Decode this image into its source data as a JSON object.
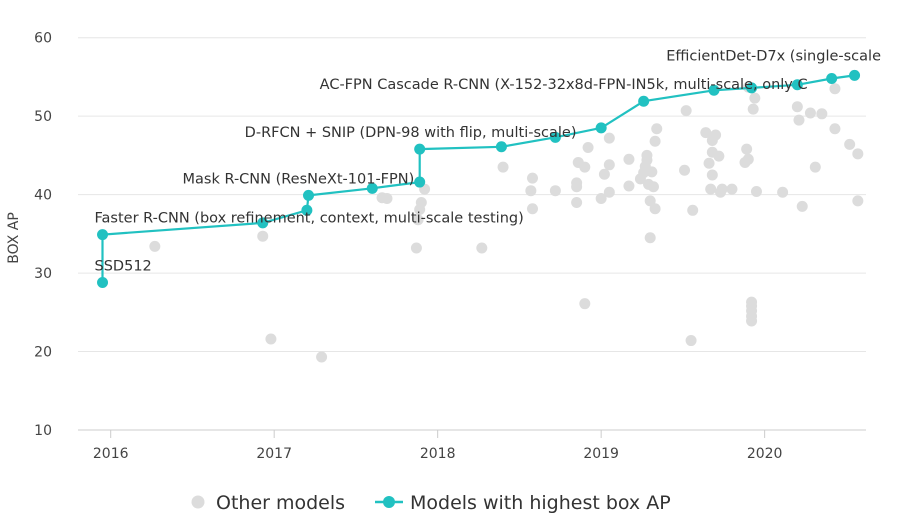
{
  "chart_data": {
    "type": "scatter",
    "ylabel": "BOX AP",
    "xlabel": "",
    "ylim": [
      10,
      62
    ],
    "xlim": [
      2015.8,
      2020.62
    ],
    "yticks": [
      10,
      20,
      30,
      40,
      50,
      60
    ],
    "xticks": [
      {
        "value": 2016.0,
        "label": "2016"
      },
      {
        "value": 2017.0,
        "label": "2017"
      },
      {
        "value": 2018.0,
        "label": "2018"
      },
      {
        "value": 2019.0,
        "label": "2019"
      },
      {
        "value": 2020.0,
        "label": "2020"
      }
    ],
    "grid": "horizontal",
    "legend_position": "bottom",
    "colors": {
      "other": "#dcdcdc",
      "best": "#21c1c1",
      "grid": "#e6e6e6",
      "axis": "#cccccc"
    },
    "series": [
      {
        "name": "Other models",
        "points": [
          [
            2016.27,
            33.4
          ],
          [
            2016.93,
            34.7
          ],
          [
            2016.98,
            21.6
          ],
          [
            2017.29,
            19.3
          ],
          [
            2017.66,
            39.6
          ],
          [
            2017.69,
            39.5
          ],
          [
            2017.87,
            33.2
          ],
          [
            2017.88,
            36.8
          ],
          [
            2017.89,
            38.1
          ],
          [
            2017.9,
            39.0
          ],
          [
            2017.92,
            40.7
          ],
          [
            2018.27,
            33.2
          ],
          [
            2018.4,
            43.5
          ],
          [
            2018.57,
            40.5
          ],
          [
            2018.58,
            42.1
          ],
          [
            2018.58,
            38.2
          ],
          [
            2018.72,
            40.5
          ],
          [
            2018.85,
            39.0
          ],
          [
            2018.85,
            41.0
          ],
          [
            2018.85,
            41.5
          ],
          [
            2018.86,
            44.1
          ],
          [
            2018.9,
            43.5
          ],
          [
            2018.9,
            26.1
          ],
          [
            2018.92,
            46.0
          ],
          [
            2019.0,
            39.5
          ],
          [
            2019.02,
            42.6
          ],
          [
            2019.05,
            40.3
          ],
          [
            2019.05,
            43.8
          ],
          [
            2019.05,
            47.2
          ],
          [
            2019.17,
            41.1
          ],
          [
            2019.17,
            44.5
          ],
          [
            2019.24,
            42.0
          ],
          [
            2019.26,
            42.8
          ],
          [
            2019.27,
            43.6
          ],
          [
            2019.28,
            44.4
          ],
          [
            2019.28,
            45.0
          ],
          [
            2019.29,
            41.3
          ],
          [
            2019.3,
            34.5
          ],
          [
            2019.3,
            39.2
          ],
          [
            2019.31,
            42.9
          ],
          [
            2019.32,
            41.0
          ],
          [
            2019.33,
            38.2
          ],
          [
            2019.33,
            46.8
          ],
          [
            2019.34,
            48.4
          ],
          [
            2019.51,
            43.1
          ],
          [
            2019.52,
            50.7
          ],
          [
            2019.55,
            21.4
          ],
          [
            2019.56,
            38.0
          ],
          [
            2019.64,
            47.9
          ],
          [
            2019.66,
            44.0
          ],
          [
            2019.67,
            40.7
          ],
          [
            2019.68,
            42.5
          ],
          [
            2019.68,
            45.4
          ],
          [
            2019.68,
            46.9
          ],
          [
            2019.7,
            47.6
          ],
          [
            2019.72,
            44.9
          ],
          [
            2019.73,
            40.3
          ],
          [
            2019.74,
            40.7
          ],
          [
            2019.8,
            40.7
          ],
          [
            2019.88,
            44.1
          ],
          [
            2019.89,
            45.8
          ],
          [
            2019.9,
            44.5
          ],
          [
            2019.9,
            53.7
          ],
          [
            2019.92,
            23.9
          ],
          [
            2019.92,
            24.5
          ],
          [
            2019.92,
            25.2
          ],
          [
            2019.92,
            25.8
          ],
          [
            2019.92,
            26.3
          ],
          [
            2019.93,
            50.9
          ],
          [
            2019.94,
            52.3
          ],
          [
            2019.95,
            40.4
          ],
          [
            2020.11,
            40.3
          ],
          [
            2020.2,
            51.2
          ],
          [
            2020.21,
            49.5
          ],
          [
            2020.23,
            38.5
          ],
          [
            2020.28,
            50.4
          ],
          [
            2020.31,
            43.5
          ],
          [
            2020.35,
            50.3
          ],
          [
            2020.43,
            48.4
          ],
          [
            2020.43,
            53.5
          ],
          [
            2020.52,
            46.4
          ],
          [
            2020.57,
            45.2
          ],
          [
            2020.57,
            39.2
          ]
        ]
      },
      {
        "name": "Models with highest box AP",
        "points": [
          [
            2015.95,
            28.8
          ],
          [
            2015.95,
            34.9
          ],
          [
            2016.93,
            36.4
          ],
          [
            2017.2,
            38.0
          ],
          [
            2017.21,
            39.9
          ],
          [
            2017.6,
            40.8
          ],
          [
            2017.89,
            41.6
          ],
          [
            2017.89,
            45.8
          ],
          [
            2018.39,
            46.1
          ],
          [
            2018.72,
            47.3
          ],
          [
            2019.0,
            48.5
          ],
          [
            2019.26,
            51.9
          ],
          [
            2019.69,
            53.3
          ],
          [
            2019.92,
            53.6
          ],
          [
            2020.2,
            54.0
          ],
          [
            2020.41,
            54.8
          ],
          [
            2020.55,
            55.2
          ]
        ]
      }
    ],
    "annotations": [
      {
        "text": "SSD512",
        "x": 2015.95,
        "y": 28.8
      },
      {
        "text": "Faster R-CNN (box refinement, context, multi-scale testing)",
        "x": 2015.95,
        "y": 34.9
      },
      {
        "text": "Mask R-CNN (ResNeXt-101-FPN)",
        "x": 2017.21,
        "y": 39.9
      },
      {
        "text": "D-RFCN + SNIP (DPN-98 with flip, multi-scale)",
        "x": 2017.89,
        "y": 45.8
      },
      {
        "text": "AC-FPN Cascade R-CNN (X-152-32x8d-FPN-IN5k, multi-scale, only C",
        "x": 2019.26,
        "y": 51.9
      },
      {
        "text": "EfficientDet-D7x (single-scale",
        "x": 2020.55,
        "y": 55.2
      }
    ]
  }
}
